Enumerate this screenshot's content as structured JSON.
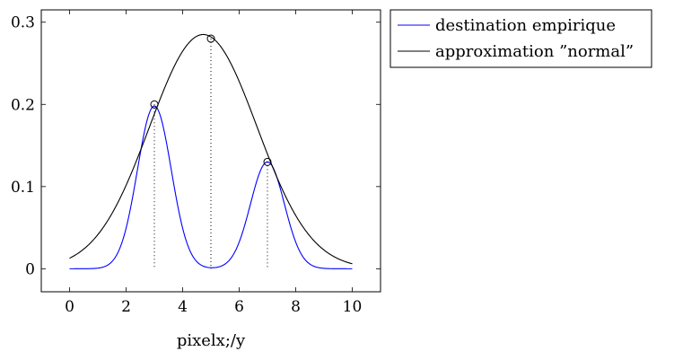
{
  "chart_data": {
    "type": "line",
    "xlabel": "pixelx;/y",
    "ylabel": "",
    "xlim": [
      -1,
      11
    ],
    "ylim": [
      -0.028,
      0.315
    ],
    "x_ticks": [
      0,
      2,
      4,
      6,
      8,
      10
    ],
    "y_ticks": [
      0,
      0.1,
      0.2,
      0.3
    ],
    "x_tick_labels": [
      "0",
      "2",
      "4",
      "6",
      "8",
      "10"
    ],
    "y_tick_labels": [
      "0",
      "0.1",
      "0.2",
      "0.3"
    ],
    "grid": false,
    "legend_position": "outside-top-right",
    "series": [
      {
        "name": "destination empirique",
        "color": "#0000ff",
        "kind": "gaussian-mixture",
        "components": [
          {
            "amplitude": 0.198,
            "mean": 3,
            "sigma": 0.6
          },
          {
            "amplitude": 0.13,
            "mean": 7,
            "sigma": 0.6
          }
        ],
        "x_range": [
          0,
          10
        ]
      },
      {
        "name": "approximation ”normal”",
        "color": "#000000",
        "kind": "gaussian",
        "components": [
          {
            "amplitude": 0.285,
            "mean": 4.73,
            "sigma": 1.9
          }
        ],
        "x_range": [
          0,
          10
        ]
      }
    ],
    "markers": [
      {
        "x": 3,
        "y": 0.2
      },
      {
        "x": 5,
        "y": 0.28
      },
      {
        "x": 7,
        "y": 0.13
      }
    ]
  }
}
